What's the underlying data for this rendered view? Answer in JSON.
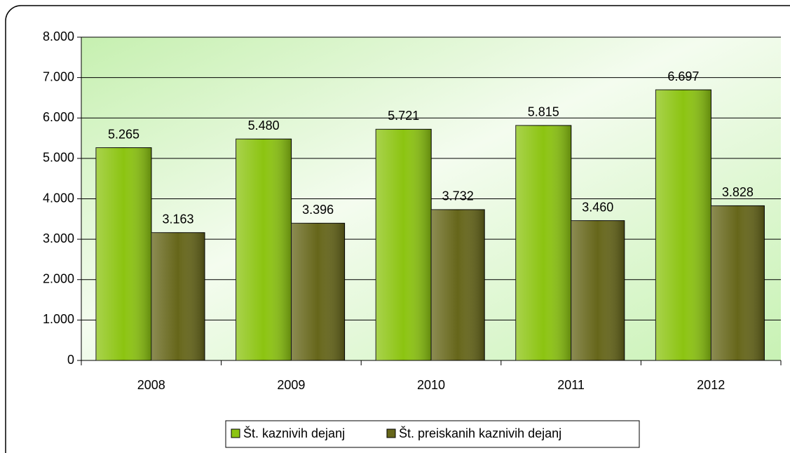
{
  "chart_data": {
    "type": "bar",
    "categories": [
      "2008",
      "2009",
      "2010",
      "2011",
      "2012"
    ],
    "series": [
      {
        "name": "Št. kaznivih dejanj",
        "color": "#8cc411",
        "values": [
          5265,
          5480,
          5721,
          5815,
          6697
        ],
        "value_labels": [
          "5.265",
          "5.480",
          "5.721",
          "5.815",
          "6.697"
        ]
      },
      {
        "name": "Št. preiskanih kaznivih dejanj",
        "color": "#66661a",
        "values": [
          3163,
          3396,
          3732,
          3460,
          3828
        ],
        "value_labels": [
          "3.163",
          "3.396",
          "3.732",
          "3.460",
          "3.828"
        ]
      }
    ],
    "ylim": [
      0,
      8000
    ],
    "yticks": [
      0,
      {
        "value": 1000,
        "label": "1.000"
      },
      {
        "value": 2000,
        "label": "2.000"
      },
      {
        "value": 3000,
        "label": "3.000"
      },
      {
        "value": 4000,
        "label": "4.000"
      },
      {
        "value": 5000,
        "label": "5.000"
      },
      {
        "value": 6000,
        "label": "6.000"
      },
      {
        "value": 7000,
        "label": "7.000"
      },
      {
        "value": 8000,
        "label": "8.000"
      }
    ],
    "grid": true,
    "legend": "bottom"
  }
}
